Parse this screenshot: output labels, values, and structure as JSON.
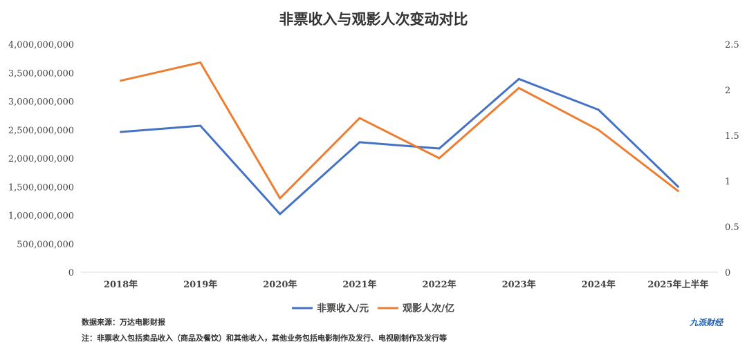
{
  "chart_data": {
    "type": "line",
    "title": "非票收入与观影人次变动对比",
    "categories": [
      "2018年",
      "2019年",
      "2020年",
      "2021年",
      "2022年",
      "2023年",
      "2024年",
      "2025年上半年"
    ],
    "series": [
      {
        "name": "非票收入/元",
        "axis": "left",
        "color": "#4472c4",
        "values": [
          2460000000,
          2570000000,
          1020000000,
          2280000000,
          2170000000,
          3390000000,
          2850000000,
          1500000000
        ]
      },
      {
        "name": "观影人次/亿",
        "axis": "right",
        "color": "#ed7d31",
        "values": [
          2.1,
          2.3,
          0.81,
          1.69,
          1.25,
          2.02,
          1.56,
          0.89
        ]
      }
    ],
    "left_axis": {
      "ylim": [
        0,
        4000000000
      ],
      "ticks": [
        "0",
        "500,000,000",
        "1,000,000,000",
        "1,500,000,000",
        "2,000,000,000",
        "2,500,000,000",
        "3,000,000,000",
        "3,500,000,000",
        "4,000,000,000"
      ]
    },
    "right_axis": {
      "ylim": [
        0,
        2.5
      ],
      "ticks": [
        "0",
        "0.5",
        "1",
        "1.5",
        "2",
        "2.5"
      ]
    },
    "legend": "bottom",
    "grid": false
  },
  "source": "数据来源：万达电影财报",
  "footnote": "注：非票收入包括卖品收入（商品及餐饮）和其他收入，其他业务包括电影制作及发行、电视剧制作及发行等",
  "logo": "九派财经"
}
